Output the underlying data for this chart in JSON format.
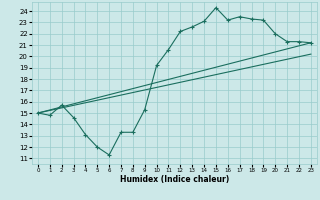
{
  "xlabel": "Humidex (Indice chaleur)",
  "bg_color": "#cce8e8",
  "grid_color": "#99cccc",
  "line_color": "#1a6e5e",
  "xlim": [
    -0.5,
    23.5
  ],
  "ylim": [
    10.5,
    24.8
  ],
  "xticks": [
    0,
    1,
    2,
    3,
    4,
    5,
    6,
    7,
    8,
    9,
    10,
    11,
    12,
    13,
    14,
    15,
    16,
    17,
    18,
    19,
    20,
    21,
    22,
    23
  ],
  "yticks": [
    11,
    12,
    13,
    14,
    15,
    16,
    17,
    18,
    19,
    20,
    21,
    22,
    23,
    24
  ],
  "jagged_x": [
    0,
    1,
    2,
    3,
    4,
    5,
    6,
    7,
    8,
    9,
    10,
    11,
    12,
    13,
    14,
    15,
    16,
    17,
    18,
    19,
    20,
    21,
    22,
    23
  ],
  "jagged_y": [
    15.0,
    14.8,
    15.7,
    14.6,
    13.1,
    12.0,
    11.3,
    13.3,
    13.3,
    15.3,
    19.2,
    20.6,
    22.2,
    22.6,
    23.1,
    24.3,
    23.2,
    23.5,
    23.3,
    23.2,
    22.0,
    21.3,
    21.3,
    21.2
  ],
  "trend2_x": [
    0,
    23
  ],
  "trend2_y": [
    15.0,
    21.2
  ],
  "trend3_x": [
    0,
    23
  ],
  "trend3_y": [
    15.0,
    20.2
  ]
}
